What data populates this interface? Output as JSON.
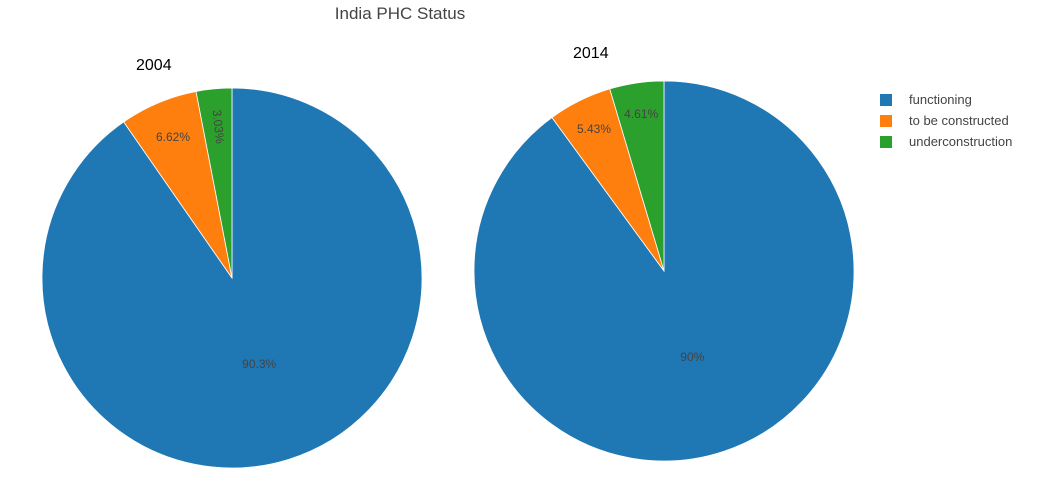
{
  "chart_data": {
    "type": "pie",
    "title": "India PHC Status",
    "legend": [
      "functioning",
      "to be constructed",
      "underconstruction"
    ],
    "legend_placement": "right",
    "colors": [
      "#1f77b4",
      "#ff7f0e",
      "#2ca02c"
    ],
    "pies": [
      {
        "subtitle": "2004",
        "labels": [
          "functioning",
          "to be constructed",
          "underconstruction"
        ],
        "values": [
          90.3,
          6.62,
          3.03
        ],
        "text": [
          "90.3%",
          "6.62%",
          "3.03%"
        ]
      },
      {
        "subtitle": "2014",
        "labels": [
          "functioning",
          "to be constructed",
          "underconstruction"
        ],
        "values": [
          90,
          5.43,
          4.61
        ],
        "text": [
          "90%",
          "5.43%",
          "4.61%"
        ]
      }
    ]
  }
}
